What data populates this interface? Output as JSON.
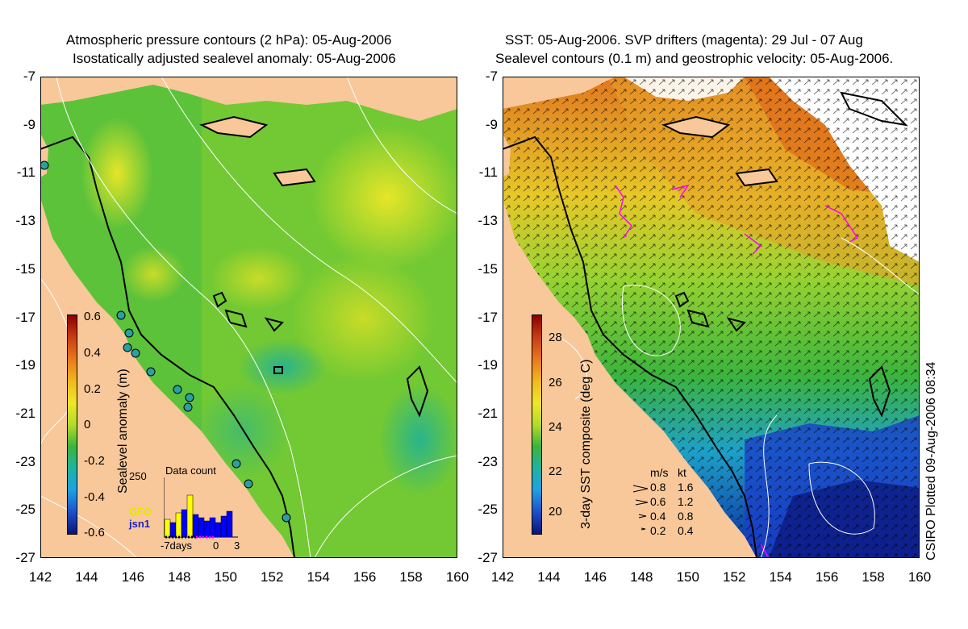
{
  "left_panel": {
    "title_line1": "Atmospheric pressure contours (2 hPa): 05-Aug-2006",
    "title_line2": "Isostatically adjusted sealevel anomaly: 05-Aug-2006",
    "colorbar_label": "Sealevel anomaly (m)",
    "colorbar_ticks": [
      "0.6",
      "0.4",
      "0.2",
      "0",
      "-0.2",
      "-0.4",
      "-0.6"
    ],
    "data_count": {
      "title": "Data count",
      "max_label": "250",
      "satellite_1": "GFO",
      "satellite_2": "jsn1",
      "x_label": "-7days",
      "x_ticks": [
        "0",
        "3"
      ],
      "colors": {
        "gfo": "#ffff00",
        "jsn1": "#0000ff"
      }
    }
  },
  "right_panel": {
    "title_line1": "SST: 05-Aug-2006. SVP drifters (magenta): 29 Jul - 07 Aug",
    "title_line2": "Sealevel contours (0.1 m) and geostrophic velocity: 05-Aug-2006.",
    "colorbar_label": "3-day SST composite (deg C)",
    "colorbar_ticks": [
      "28",
      "26",
      "24",
      "22",
      "20"
    ],
    "velocity_key": {
      "header_ms": "m/s",
      "header_kt": "kt",
      "rows": [
        {
          "ms": "0.8",
          "kt": "1.6"
        },
        {
          "ms": "0.6",
          "kt": "1.2"
        },
        {
          "ms": "0.4",
          "kt": "0.8"
        },
        {
          "ms": "0.2",
          "kt": "0.4"
        }
      ]
    }
  },
  "axes": {
    "lat_ticks": [
      "-7",
      "-9",
      "-11",
      "-13",
      "-15",
      "-17",
      "-19",
      "-21",
      "-23",
      "-25",
      "-27"
    ],
    "lon_ticks": [
      "142",
      "144",
      "146",
      "148",
      "150",
      "152",
      "154",
      "156",
      "158",
      "160"
    ]
  },
  "credit": "CSIRO Plotted 09-Aug-2006 08:34",
  "colors": {
    "land": "#f8c89a",
    "ocean_green": "#3cb43c",
    "warm_orange": "#e07820",
    "cold_blue": "#1a40c8"
  }
}
